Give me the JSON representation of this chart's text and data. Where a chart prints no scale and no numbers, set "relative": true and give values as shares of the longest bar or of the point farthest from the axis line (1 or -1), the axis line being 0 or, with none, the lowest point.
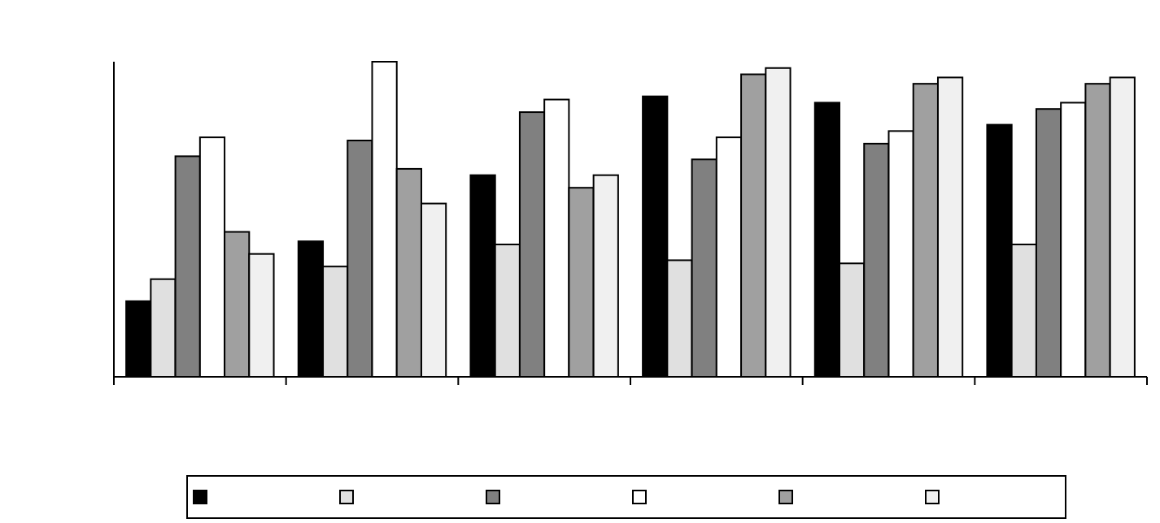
{
  "chart_data": {
    "type": "bar",
    "relative": true,
    "categories": [
      null,
      null,
      null,
      null,
      null,
      null
    ],
    "series": [
      {
        "color": "#000000",
        "values": [
          0.24,
          0.43,
          0.64,
          0.89,
          0.87,
          0.8
        ]
      },
      {
        "color": "#e0e0e0",
        "values": [
          0.31,
          0.35,
          0.42,
          0.37,
          0.36,
          0.42
        ]
      },
      {
        "color": "#808080",
        "values": [
          0.7,
          0.75,
          0.84,
          0.69,
          0.74,
          0.85
        ]
      },
      {
        "color": "#ffffff",
        "values": [
          0.76,
          1,
          0.88,
          0.76,
          0.78,
          0.87
        ]
      },
      {
        "color": "#a0a0a0",
        "values": [
          0.46,
          0.66,
          0.6,
          0.96,
          0.93,
          0.93
        ]
      },
      {
        "color": "#f0f0f0",
        "values": [
          0.39,
          0.55,
          0.64,
          0.98,
          0.95,
          0.95
        ]
      }
    ]
  }
}
